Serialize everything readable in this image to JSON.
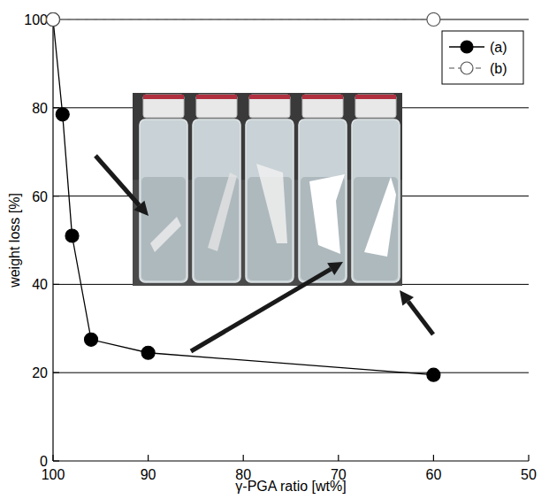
{
  "chart_data": {
    "type": "line",
    "xlabel": "γ-PGA ratio [wt%]",
    "ylabel": "weight loss [%]",
    "xlim": [
      100,
      50
    ],
    "xticks": [
      100,
      90,
      80,
      70,
      60,
      50
    ],
    "ylim": [
      0,
      100
    ],
    "yticks": [
      0,
      20,
      40,
      60,
      80,
      100
    ],
    "grid": true,
    "legend": "upper right",
    "series": [
      {
        "name": "(a)",
        "color": "#000000",
        "marker": "filled_circle",
        "line_style": "solid",
        "x": [
          100,
          99,
          98,
          96,
          90,
          60
        ],
        "values": [
          100,
          78.5,
          51,
          27.5,
          24.5,
          19.5
        ]
      },
      {
        "name": "(b)",
        "color": "#888888",
        "marker": "open_circle",
        "line_style": "dashed",
        "x": [
          100,
          60
        ],
        "values": [
          100,
          100
        ]
      }
    ]
  }
}
